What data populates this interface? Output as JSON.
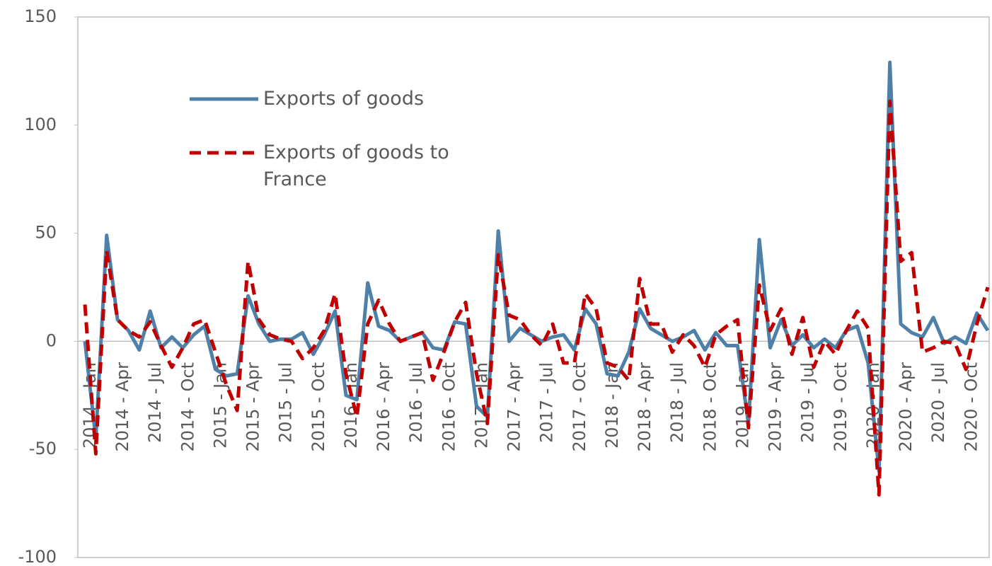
{
  "chart_data": {
    "type": "line",
    "categories": [
      "2014 - Jan",
      null,
      null,
      "2014 - Apr",
      null,
      null,
      "2014 - Jul",
      null,
      null,
      "2014 - Oct",
      null,
      null,
      "2015 - Jan",
      null,
      null,
      "2015 - Apr",
      null,
      null,
      "2015 - Jul",
      null,
      null,
      "2015 - Oct",
      null,
      null,
      "2016 - Jan",
      null,
      null,
      "2016 - Apr",
      null,
      null,
      "2016 - Jul",
      null,
      null,
      "2016 - Oct",
      null,
      null,
      "2017 - Jan",
      null,
      null,
      "2017 - Apr",
      null,
      null,
      "2017 - Jul",
      null,
      null,
      "2017 - Oct",
      null,
      null,
      "2018 - Jan",
      null,
      null,
      "2018 - Apr",
      null,
      null,
      "2018 - Jul",
      null,
      null,
      "2018 - Oct",
      null,
      null,
      "2019 - Jan",
      null,
      null,
      "2019 - Apr",
      null,
      null,
      "2019 - Jul",
      null,
      null,
      "2019 - Oct",
      null,
      null,
      "2020 - Jan",
      null,
      null,
      "2020 - Apr",
      null,
      null,
      "2020 - Jul",
      null,
      null,
      "2020 - Oct",
      null,
      null
    ],
    "series": [
      {
        "name": "Exports of goods",
        "color": "#4f81a8",
        "dash": false,
        "values": [
          0,
          -45,
          49,
          10,
          5,
          -4,
          14,
          -3,
          2,
          -3,
          3,
          7,
          -13,
          -16,
          -15,
          21,
          8,
          0,
          1,
          1,
          4,
          -6,
          3,
          14,
          -25,
          -27,
          27,
          7,
          5,
          0,
          2,
          4,
          -3,
          -4,
          9,
          8,
          -30,
          -35,
          51,
          0,
          6,
          3,
          0,
          2,
          3,
          -4,
          15,
          8,
          -15,
          -16,
          -5,
          15,
          6,
          3,
          0,
          2,
          5,
          -4,
          4,
          -2,
          -2,
          -38,
          47,
          -3,
          10,
          -2,
          3,
          -3,
          1,
          -3,
          5,
          7,
          -10,
          -60,
          129,
          8,
          4,
          2,
          11,
          -1,
          2,
          -1,
          13,
          5
        ]
      },
      {
        "name": "Exports of goods to France",
        "color": "#c00000",
        "dash": true,
        "values": [
          17,
          -52,
          42,
          10,
          5,
          2,
          9,
          -2,
          -12,
          -3,
          8,
          10,
          -5,
          -20,
          -32,
          37,
          10,
          3,
          1,
          0,
          -8,
          -3,
          5,
          22,
          -15,
          -35,
          8,
          19,
          8,
          0,
          2,
          4,
          -18,
          -5,
          9,
          18,
          -15,
          -38,
          40,
          12,
          10,
          3,
          -2,
          8,
          -10,
          -10,
          22,
          15,
          -10,
          -12,
          -18,
          29,
          8,
          8,
          -5,
          3,
          -2,
          -12,
          3,
          7,
          10,
          -40,
          26,
          5,
          15,
          -6,
          11,
          -12,
          0,
          -6,
          5,
          14,
          6,
          -71,
          111,
          37,
          41,
          -5,
          -3,
          0,
          -1,
          -13,
          8,
          25
        ]
      }
    ],
    "ylim": [
      -100,
      150
    ],
    "yticks": [
      -100,
      -50,
      0,
      50,
      100,
      150
    ],
    "grid": false
  }
}
